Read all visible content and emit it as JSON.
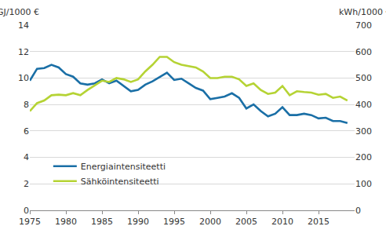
{
  "chart_data": {
    "type": "line",
    "y_label": "GJ/1000 €",
    "y2_label": "kWh/1000 €",
    "x": [
      1975,
      1976,
      1977,
      1978,
      1979,
      1980,
      1981,
      1982,
      1983,
      1984,
      1985,
      1986,
      1987,
      1988,
      1989,
      1990,
      1991,
      1992,
      1993,
      1994,
      1995,
      1996,
      1997,
      1998,
      1999,
      2000,
      2001,
      2002,
      2003,
      2004,
      2005,
      2006,
      2007,
      2008,
      2009,
      2010,
      2011,
      2012,
      2013,
      2014,
      2015,
      2016,
      2017,
      2018,
      2019
    ],
    "series": [
      {
        "name": "Energiaintensiteetti",
        "color": "#1a6fa6",
        "values": [
          9.8,
          10.7,
          10.75,
          11.0,
          10.8,
          10.3,
          10.1,
          9.6,
          9.5,
          9.6,
          9.9,
          9.6,
          9.8,
          9.4,
          9.0,
          9.1,
          9.5,
          9.75,
          10.05,
          10.4,
          9.85,
          9.95,
          9.6,
          9.25,
          9.05,
          8.4,
          8.5,
          8.6,
          8.85,
          8.5,
          7.7,
          8.0,
          7.5,
          7.1,
          7.3,
          7.8,
          7.2,
          7.2,
          7.3,
          7.2,
          6.95,
          7.0,
          6.75,
          6.75,
          6.6
        ]
      },
      {
        "name": "Sähköintensiteetti",
        "color": "#b5d334",
        "axis": "y2",
        "values": [
          375,
          405,
          415,
          435,
          437,
          435,
          443,
          435,
          455,
          472,
          490,
          485,
          500,
          495,
          485,
          495,
          525,
          550,
          580,
          580,
          560,
          550,
          545,
          540,
          525,
          500,
          500,
          505,
          505,
          495,
          470,
          480,
          455,
          440,
          445,
          470,
          435,
          450,
          447,
          445,
          437,
          440,
          425,
          430,
          415
        ]
      }
    ],
    "xlim": [
      1975,
      2020
    ],
    "xticks": [
      1975,
      1980,
      1985,
      1990,
      1995,
      2000,
      2005,
      2010,
      2015
    ],
    "ylim": [
      0,
      14
    ],
    "yticks": [
      0,
      2,
      4,
      6,
      8,
      10,
      12,
      14
    ],
    "y2lim": [
      0,
      700
    ],
    "y2ticks": [
      0,
      100,
      200,
      300,
      400,
      500,
      600,
      700
    ],
    "grid": true,
    "legend": "lower left"
  }
}
